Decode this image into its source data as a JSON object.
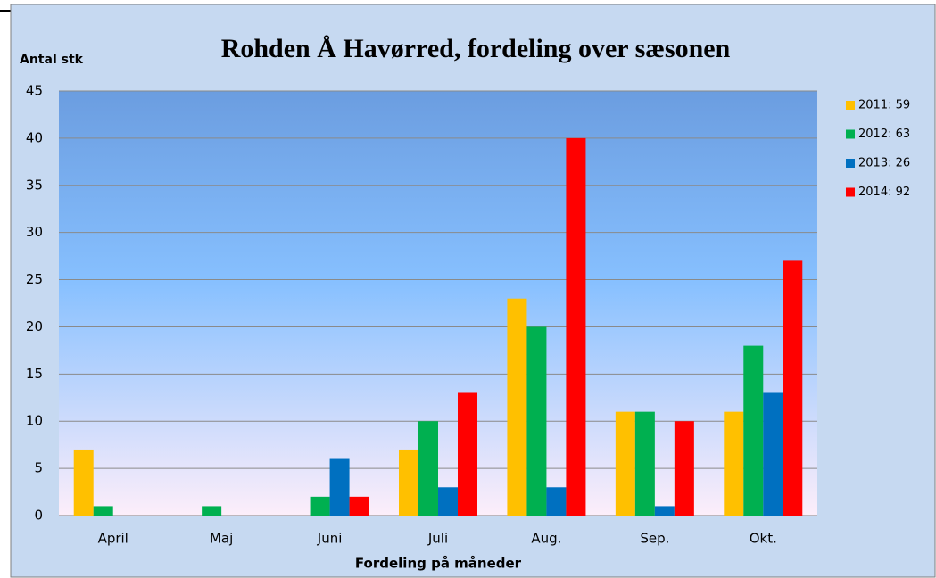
{
  "chart_data": {
    "type": "bar",
    "title": "Rohden Å Havørred, fordeling over sæsonen",
    "y_label": "Antal stk",
    "x_label": "Fordeling  på måneder",
    "categories": [
      "April",
      "Maj",
      "Juni",
      "Juli",
      "Aug.",
      "Sep.",
      "Okt."
    ],
    "series": [
      {
        "name": "2011: 59",
        "color": "#ffc000",
        "values": [
          7,
          0,
          0,
          7,
          23,
          11,
          11
        ]
      },
      {
        "name": "2012: 63",
        "color": "#00b050",
        "values": [
          1,
          1,
          2,
          10,
          20,
          11,
          18
        ]
      },
      {
        "name": "2013: 26",
        "color": "#0070c0",
        "values": [
          0,
          0,
          6,
          3,
          3,
          1,
          13
        ]
      },
      {
        "name": "2014: 92",
        "color": "#ff0000",
        "values": [
          0,
          0,
          2,
          13,
          40,
          10,
          27
        ]
      }
    ],
    "ylim": [
      0,
      45
    ],
    "yticks": [
      0,
      5,
      10,
      15,
      20,
      25,
      30,
      35,
      40,
      45
    ],
    "grid": true,
    "legend": "right"
  }
}
